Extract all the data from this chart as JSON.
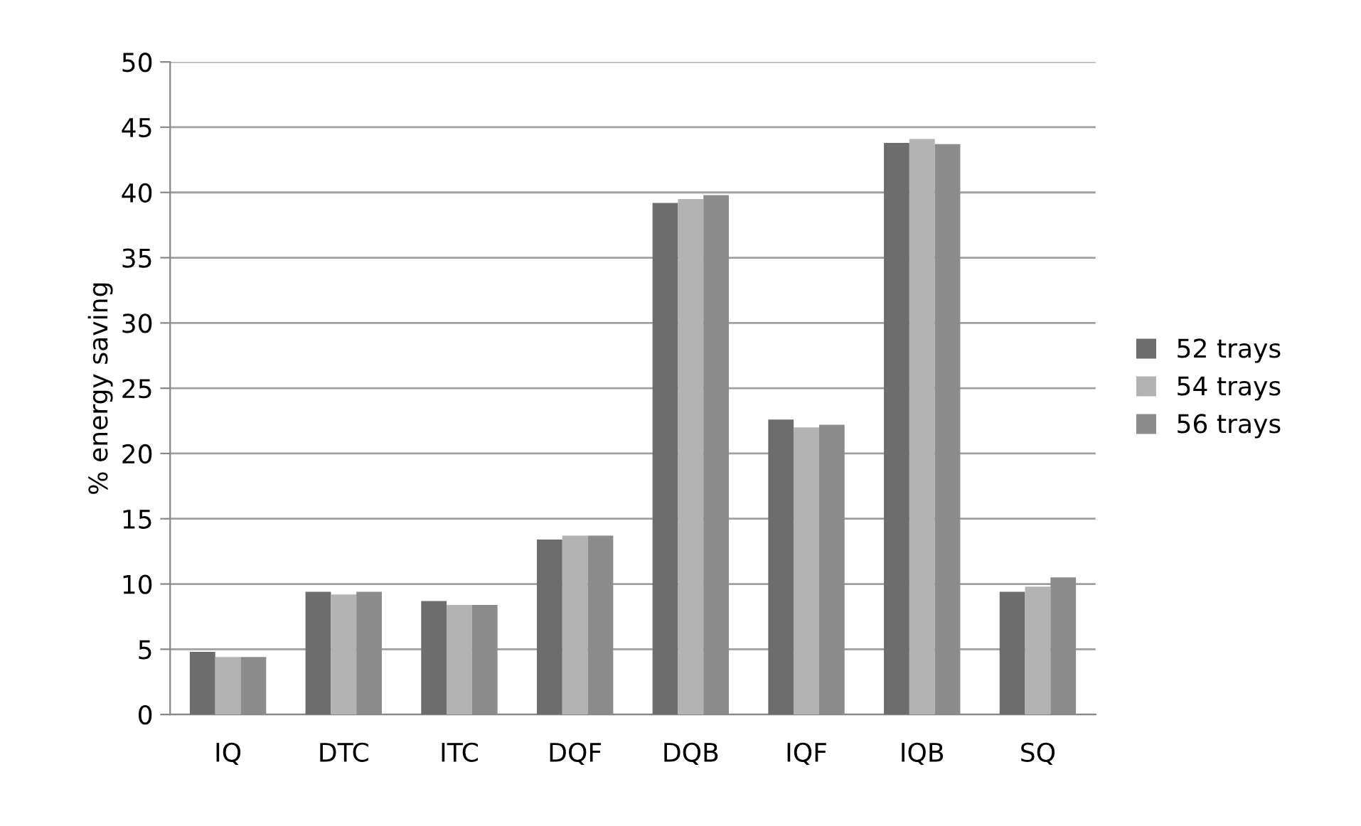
{
  "chart_data": {
    "type": "bar",
    "ylabel": "% energy saving",
    "categories": [
      "IQ",
      "DTC",
      "ITC",
      "DQF",
      "DQB",
      "IQF",
      "IQB",
      "SQ"
    ],
    "series": [
      {
        "name": "52 trays",
        "color": "#6d6d6d",
        "values": [
          4.8,
          9.4,
          8.7,
          13.4,
          39.2,
          22.6,
          43.8,
          9.4
        ]
      },
      {
        "name": "54 trays",
        "color": "#b3b3b3",
        "values": [
          4.4,
          9.2,
          8.4,
          13.7,
          39.5,
          22.0,
          44.1,
          9.8
        ]
      },
      {
        "name": "56 trays",
        "color": "#8c8c8c",
        "values": [
          4.4,
          9.4,
          8.4,
          13.7,
          39.8,
          22.2,
          43.7,
          10.5
        ]
      }
    ],
    "ylim": [
      0,
      50
    ],
    "yticks": [
      0,
      5,
      10,
      15,
      20,
      25,
      30,
      35,
      40,
      45,
      50
    ],
    "grid": "y",
    "legend": "right"
  }
}
